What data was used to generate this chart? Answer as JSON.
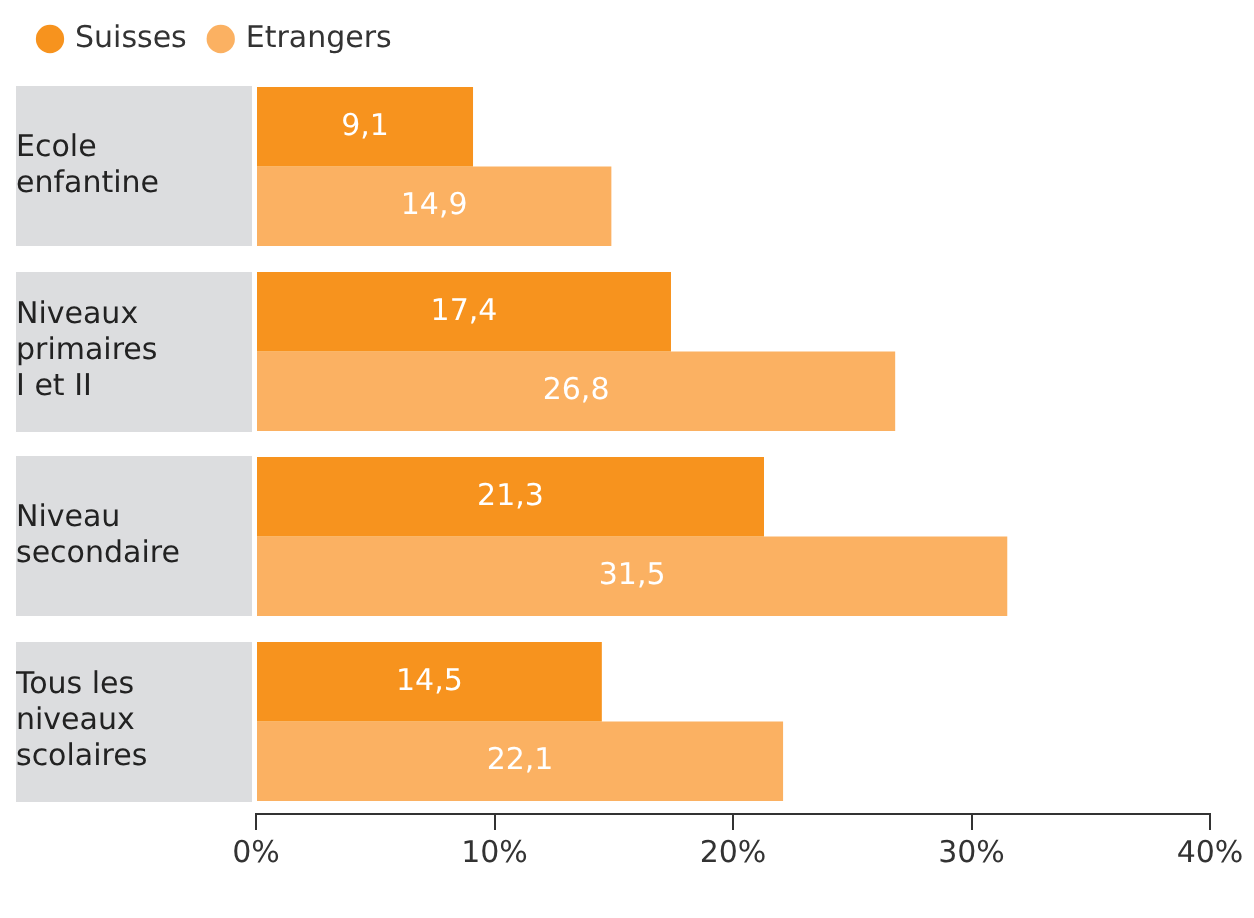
{
  "chart_data": {
    "type": "bar",
    "orientation": "horizontal",
    "categories": [
      "Ecole\nenfantine",
      "Niveaux\nprimaires\nI et II",
      "Niveau\nsecondaire",
      "Tous les\nniveaux\nscolaires"
    ],
    "series": [
      {
        "name": "Suisses",
        "color": "#f7931e",
        "values": [
          9.1,
          17.4,
          21.3,
          14.5
        ],
        "value_labels": [
          "9,1",
          "17,4",
          "21,3",
          "14,5"
        ]
      },
      {
        "name": "Etrangers",
        "color": "#fbb162",
        "values": [
          14.9,
          26.8,
          31.5,
          22.1
        ],
        "value_labels": [
          "14,9",
          "26,8",
          "31,5",
          "22,1"
        ]
      }
    ],
    "xlim": [
      0,
      40
    ],
    "xticks": [
      {
        "value": 0,
        "label": "0%"
      },
      {
        "value": 10,
        "label": "10%"
      },
      {
        "value": 20,
        "label": "20%"
      },
      {
        "value": 30,
        "label": "30%"
      },
      {
        "value": 40,
        "label": "40%"
      }
    ],
    "legend": "top left",
    "grid": false
  }
}
